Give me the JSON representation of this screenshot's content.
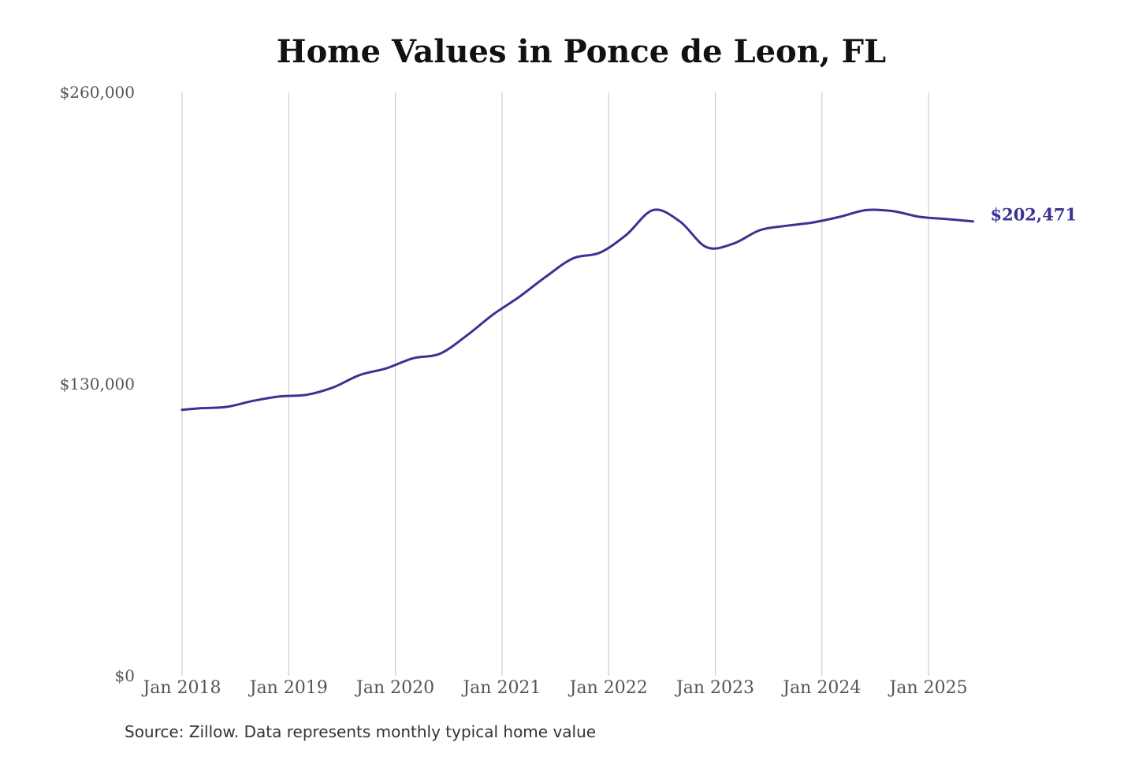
{
  "chart_data": {
    "type": "line",
    "title": "Home Values in Ponce de Leon, FL",
    "source": "Source: Zillow. Data represents monthly typical home value",
    "xlabel": "",
    "ylabel": "",
    "ylim": [
      0,
      260000
    ],
    "y_ticks": [
      {
        "value": 0,
        "label": "$0"
      },
      {
        "value": 130000,
        "label": "$130,000"
      },
      {
        "value": 260000,
        "label": "$260,000"
      }
    ],
    "x_ticks": [
      {
        "date": "2018-01",
        "label": "Jan 2018"
      },
      {
        "date": "2019-01",
        "label": "Jan 2019"
      },
      {
        "date": "2020-01",
        "label": "Jan 2020"
      },
      {
        "date": "2021-01",
        "label": "Jan 2021"
      },
      {
        "date": "2022-01",
        "label": "Jan 2022"
      },
      {
        "date": "2023-01",
        "label": "Jan 2023"
      },
      {
        "date": "2024-01",
        "label": "Jan 2024"
      },
      {
        "date": "2025-01",
        "label": "Jan 2025"
      }
    ],
    "vertical_grid": true,
    "line_color": "#3a3393",
    "end_label": "$202,471",
    "series": [
      {
        "name": "",
        "x": [
          "2018-01",
          "2018-03",
          "2018-06",
          "2018-09",
          "2018-12",
          "2019-03",
          "2019-06",
          "2019-09",
          "2019-12",
          "2020-03",
          "2020-06",
          "2020-09",
          "2020-12",
          "2021-03",
          "2021-06",
          "2021-09",
          "2021-12",
          "2022-03",
          "2022-06",
          "2022-09",
          "2022-12",
          "2023-03",
          "2023-06",
          "2023-09",
          "2023-12",
          "2024-03",
          "2024-06",
          "2024-09",
          "2024-12",
          "2025-03",
          "2025-06"
        ],
        "values": [
          118500,
          119200,
          119800,
          122500,
          124500,
          125200,
          128500,
          134000,
          137000,
          141500,
          143500,
          151500,
          161000,
          169000,
          178000,
          186000,
          188500,
          196500,
          207500,
          202500,
          191000,
          192500,
          198500,
          200500,
          202000,
          204500,
          207500,
          207000,
          204500,
          203500,
          202471
        ]
      }
    ]
  }
}
